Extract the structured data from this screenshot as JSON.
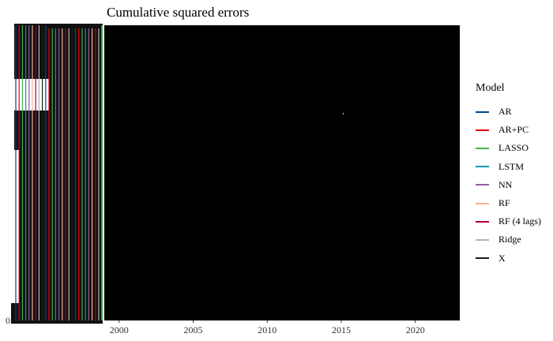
{
  "chart_data": {
    "type": "line",
    "title": "Cumulative squared errors",
    "xlabel": "",
    "ylabel": "",
    "x_ticks": [
      "2000",
      "2005",
      "2010",
      "2015",
      "2020"
    ],
    "xlim": [
      1999,
      2023
    ],
    "y_tick_label_bottom": "0",
    "legend_title": "Model",
    "legend_position": "right",
    "grid": false,
    "series": [
      {
        "name": "AR",
        "color": "#00468B"
      },
      {
        "name": "AR+PC",
        "color": "#ED0000"
      },
      {
        "name": "LASSO",
        "color": "#42B540"
      },
      {
        "name": "LSTM",
        "color": "#0099B4"
      },
      {
        "name": "NN",
        "color": "#925E9F"
      },
      {
        "name": "RF",
        "color": "#FDAF91"
      },
      {
        "name": "RF (4 lags)",
        "color": "#AD002A"
      },
      {
        "name": "Ridge",
        "color": "#ADB6B6"
      },
      {
        "name": "X",
        "color": "#1B1919"
      }
    ]
  }
}
